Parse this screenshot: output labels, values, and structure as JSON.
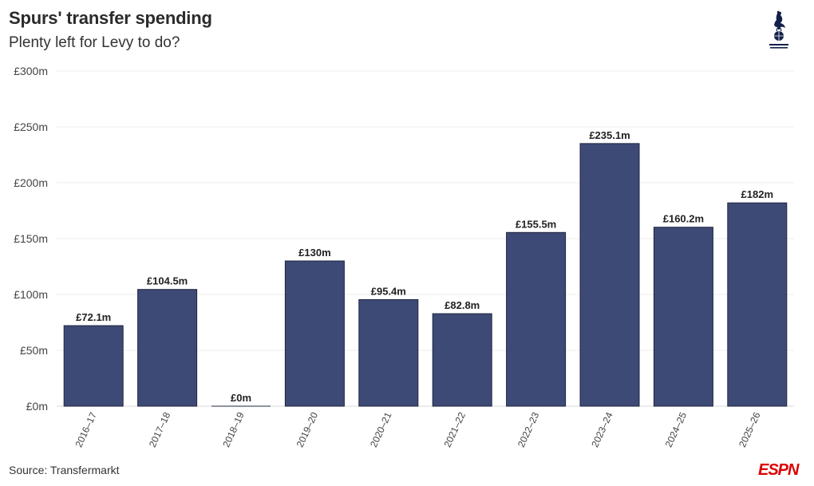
{
  "header": {
    "title": "Spurs' transfer spending",
    "subtitle": "Plenty left for Levy to do?"
  },
  "footer": {
    "source": "Source: Transfermarkt",
    "brand": "ESPN"
  },
  "logo": {
    "icon": "tottenham-crest-icon"
  },
  "colors": {
    "bar": "#3d4a75",
    "bar_stroke": "#1f2440",
    "grid": "#ececec"
  },
  "chart_data": {
    "type": "bar",
    "title": "Spurs' transfer spending",
    "subtitle": "Plenty left for Levy to do?",
    "xlabel": "",
    "ylabel": "",
    "categories": [
      "2016–17",
      "2017–18",
      "2018–19",
      "2019–20",
      "2020–21",
      "2021–22",
      "2022–23",
      "2023–24",
      "2024–25",
      "2025–26"
    ],
    "values": [
      72.1,
      104.5,
      0,
      130,
      95.4,
      82.8,
      155.5,
      235.1,
      160.2,
      182
    ],
    "data_labels": [
      "£72.1m",
      "£104.5m",
      "£0m",
      "£130m",
      "£95.4m",
      "£82.8m",
      "£155.5m",
      "£235.1m",
      "£160.2m",
      "£182m"
    ],
    "ylim": [
      0,
      300
    ],
    "yticks": [
      0,
      50,
      100,
      150,
      200,
      250,
      300
    ],
    "ytick_labels": [
      "£0m",
      "£50m",
      "£100m",
      "£150m",
      "£200m",
      "£250m",
      "£300m"
    ],
    "grid": true
  }
}
